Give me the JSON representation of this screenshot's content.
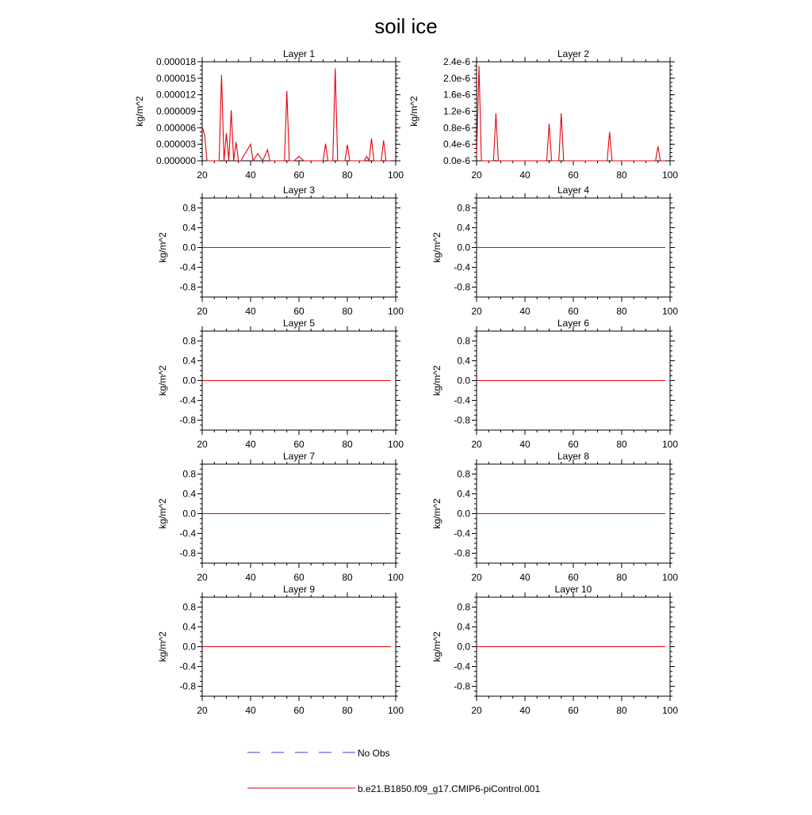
{
  "title": "soil ice",
  "colors": {
    "model": "#e8000b",
    "obs": "#3b3bd6",
    "axis": "#000000"
  },
  "legend": {
    "obs_label": "No Obs",
    "model_label": "b.e21.B1850.f09_g17.CMIP6-piControl.001"
  },
  "chart_data": [
    {
      "type": "line",
      "title": "Layer 1",
      "ylabel": "kg/m^2",
      "xlim": [
        20,
        100
      ],
      "xticks": [
        20,
        40,
        60,
        80,
        100
      ],
      "ylim": [
        0,
        1.8e-05
      ],
      "yticks": [
        0,
        3e-06,
        6e-06,
        9e-06,
        1.2e-05,
        1.5e-05,
        1.8e-05
      ],
      "ytick_labels": [
        "0.000000",
        "0.000003",
        "0.000006",
        "0.000009",
        "0.000012",
        "0.000015",
        "0.000018"
      ],
      "series": [
        {
          "name": "b.e21.B1850.f09_g17.CMIP6-piControl.001",
          "x": [
            20,
            21,
            22,
            27,
            28,
            29,
            30,
            31,
            32,
            33,
            34,
            35,
            36,
            40,
            41,
            43,
            45,
            47,
            48,
            51,
            54,
            55,
            56,
            58,
            60,
            62,
            70,
            71,
            72,
            74,
            75,
            76,
            79,
            80,
            81,
            87,
            88,
            89,
            90,
            91,
            94,
            95,
            96,
            98
          ],
          "y": [
            6.2e-06,
            4.7e-06,
            0,
            0,
            1.56e-05,
            0,
            5e-06,
            0,
            9.2e-06,
            0,
            3.4e-06,
            0,
            0,
            3e-06,
            0,
            1.3e-06,
            0,
            2e-06,
            0,
            0,
            0,
            1.27e-05,
            0,
            0,
            8e-07,
            0,
            0,
            3.1e-06,
            0,
            0,
            1.68e-05,
            0,
            0,
            2.9e-06,
            0,
            0,
            8e-07,
            0,
            4.1e-06,
            0,
            0,
            3.7e-06,
            0,
            0
          ]
        }
      ]
    },
    {
      "type": "line",
      "title": "Layer 2",
      "ylabel": "kg/m^2",
      "xlim": [
        20,
        100
      ],
      "xticks": [
        20,
        40,
        60,
        80,
        100
      ],
      "ylim": [
        0,
        2.4e-06
      ],
      "yticks": [
        0,
        4e-07,
        8e-07,
        1.2e-06,
        1.6e-06,
        2e-06,
        2.4e-06
      ],
      "ytick_labels": [
        "0.0e-6",
        "0.4e-6",
        "0.8e-6",
        "1.2e-6",
        "1.6e-6",
        "2.0e-6",
        "2.4e-6"
      ],
      "series": [
        {
          "name": "b.e21.B1850.f09_g17.CMIP6-piControl.001",
          "x": [
            20,
            21,
            22,
            27,
            28,
            29,
            49,
            50,
            51,
            54,
            55,
            56,
            74,
            75,
            76,
            94,
            95,
            96,
            98
          ],
          "y": [
            1e-07,
            2.3e-06,
            0,
            0,
            1.15e-06,
            0,
            0,
            9e-07,
            0,
            0,
            1.15e-06,
            0,
            0,
            7e-07,
            0,
            0,
            3.5e-07,
            0,
            0
          ]
        }
      ]
    },
    {
      "type": "line",
      "title": "Layer 3",
      "ylabel": "kg/m^2",
      "xlim": [
        20,
        100
      ],
      "xticks": [
        20,
        40,
        60,
        80,
        100
      ],
      "ylim": [
        -1,
        1
      ],
      "yticks": [
        -0.8,
        -0.4,
        0,
        0.4,
        0.8
      ],
      "ytick_labels": [
        "-0.8",
        "-0.4",
        "0.0",
        "0.4",
        "0.8"
      ],
      "series": [
        {
          "name": "b.e21.B1850.f09_g17.CMIP6-piControl.001",
          "x": [
            20,
            98
          ],
          "y": [
            0,
            0
          ]
        }
      ]
    },
    {
      "type": "line",
      "title": "Layer 4",
      "ylabel": "kg/m^2",
      "xlim": [
        20,
        100
      ],
      "xticks": [
        20,
        40,
        60,
        80,
        100
      ],
      "ylim": [
        -1,
        1
      ],
      "yticks": [
        -0.8,
        -0.4,
        0,
        0.4,
        0.8
      ],
      "ytick_labels": [
        "-0.8",
        "-0.4",
        "0.0",
        "0.4",
        "0.8"
      ],
      "series": [
        {
          "name": "b.e21.B1850.f09_g17.CMIP6-piControl.001",
          "x": [
            20,
            98
          ],
          "y": [
            0,
            0
          ]
        }
      ]
    },
    {
      "type": "line",
      "title": "Layer 5",
      "ylabel": "kg/m^2",
      "xlim": [
        20,
        100
      ],
      "xticks": [
        20,
        40,
        60,
        80,
        100
      ],
      "ylim": [
        -1,
        1
      ],
      "yticks": [
        -0.8,
        -0.4,
        0,
        0.4,
        0.8
      ],
      "ytick_labels": [
        "-0.8",
        "-0.4",
        "0.0",
        "0.4",
        "0.8"
      ],
      "series": [
        {
          "name": "b.e21.B1850.f09_g17.CMIP6-piControl.001",
          "x": [
            20,
            98
          ],
          "y": [
            0,
            0
          ]
        }
      ]
    },
    {
      "type": "line",
      "title": "Layer 6",
      "ylabel": "kg/m^2",
      "xlim": [
        20,
        100
      ],
      "xticks": [
        20,
        40,
        60,
        80,
        100
      ],
      "ylim": [
        -1,
        1
      ],
      "yticks": [
        -0.8,
        -0.4,
        0,
        0.4,
        0.8
      ],
      "ytick_labels": [
        "-0.8",
        "-0.4",
        "0.0",
        "0.4",
        "0.8"
      ],
      "series": [
        {
          "name": "b.e21.B1850.f09_g17.CMIP6-piControl.001",
          "x": [
            20,
            98
          ],
          "y": [
            0,
            0
          ]
        }
      ]
    },
    {
      "type": "line",
      "title": "Layer 7",
      "ylabel": "kg/m^2",
      "xlim": [
        20,
        100
      ],
      "xticks": [
        20,
        40,
        60,
        80,
        100
      ],
      "ylim": [
        -1,
        1
      ],
      "yticks": [
        -0.8,
        -0.4,
        0,
        0.4,
        0.8
      ],
      "ytick_labels": [
        "-0.8",
        "-0.4",
        "0.0",
        "0.4",
        "0.8"
      ],
      "series": [
        {
          "name": "b.e21.B1850.f09_g17.CMIP6-piControl.001",
          "x": [
            20,
            98
          ],
          "y": [
            0,
            0
          ]
        }
      ]
    },
    {
      "type": "line",
      "title": "Layer 8",
      "ylabel": "kg/m^2",
      "xlim": [
        20,
        100
      ],
      "xticks": [
        20,
        40,
        60,
        80,
        100
      ],
      "ylim": [
        -1,
        1
      ],
      "yticks": [
        -0.8,
        -0.4,
        0,
        0.4,
        0.8
      ],
      "ytick_labels": [
        "-0.8",
        "-0.4",
        "0.0",
        "0.4",
        "0.8"
      ],
      "series": [
        {
          "name": "b.e21.B1850.f09_g17.CMIP6-piControl.001",
          "x": [
            20,
            98
          ],
          "y": [
            0,
            0
          ]
        }
      ]
    },
    {
      "type": "line",
      "title": "Layer 9",
      "ylabel": "kg/m^2",
      "xlim": [
        20,
        100
      ],
      "xticks": [
        20,
        40,
        60,
        80,
        100
      ],
      "ylim": [
        -1,
        1
      ],
      "yticks": [
        -0.8,
        -0.4,
        0,
        0.4,
        0.8
      ],
      "ytick_labels": [
        "-0.8",
        "-0.4",
        "0.0",
        "0.4",
        "0.8"
      ],
      "series": [
        {
          "name": "b.e21.B1850.f09_g17.CMIP6-piControl.001",
          "x": [
            20,
            98
          ],
          "y": [
            0,
            0
          ]
        }
      ]
    },
    {
      "type": "line",
      "title": "Layer 10",
      "ylabel": "kg/m^2",
      "xlim": [
        20,
        100
      ],
      "xticks": [
        20,
        40,
        60,
        80,
        100
      ],
      "ylim": [
        -1,
        1
      ],
      "yticks": [
        -0.8,
        -0.4,
        0,
        0.4,
        0.8
      ],
      "ytick_labels": [
        "-0.8",
        "-0.4",
        "0.0",
        "0.4",
        "0.8"
      ],
      "series": [
        {
          "name": "b.e21.B1850.f09_g17.CMIP6-piControl.001",
          "x": [
            20,
            98
          ],
          "y": [
            0,
            0
          ]
        }
      ]
    }
  ]
}
